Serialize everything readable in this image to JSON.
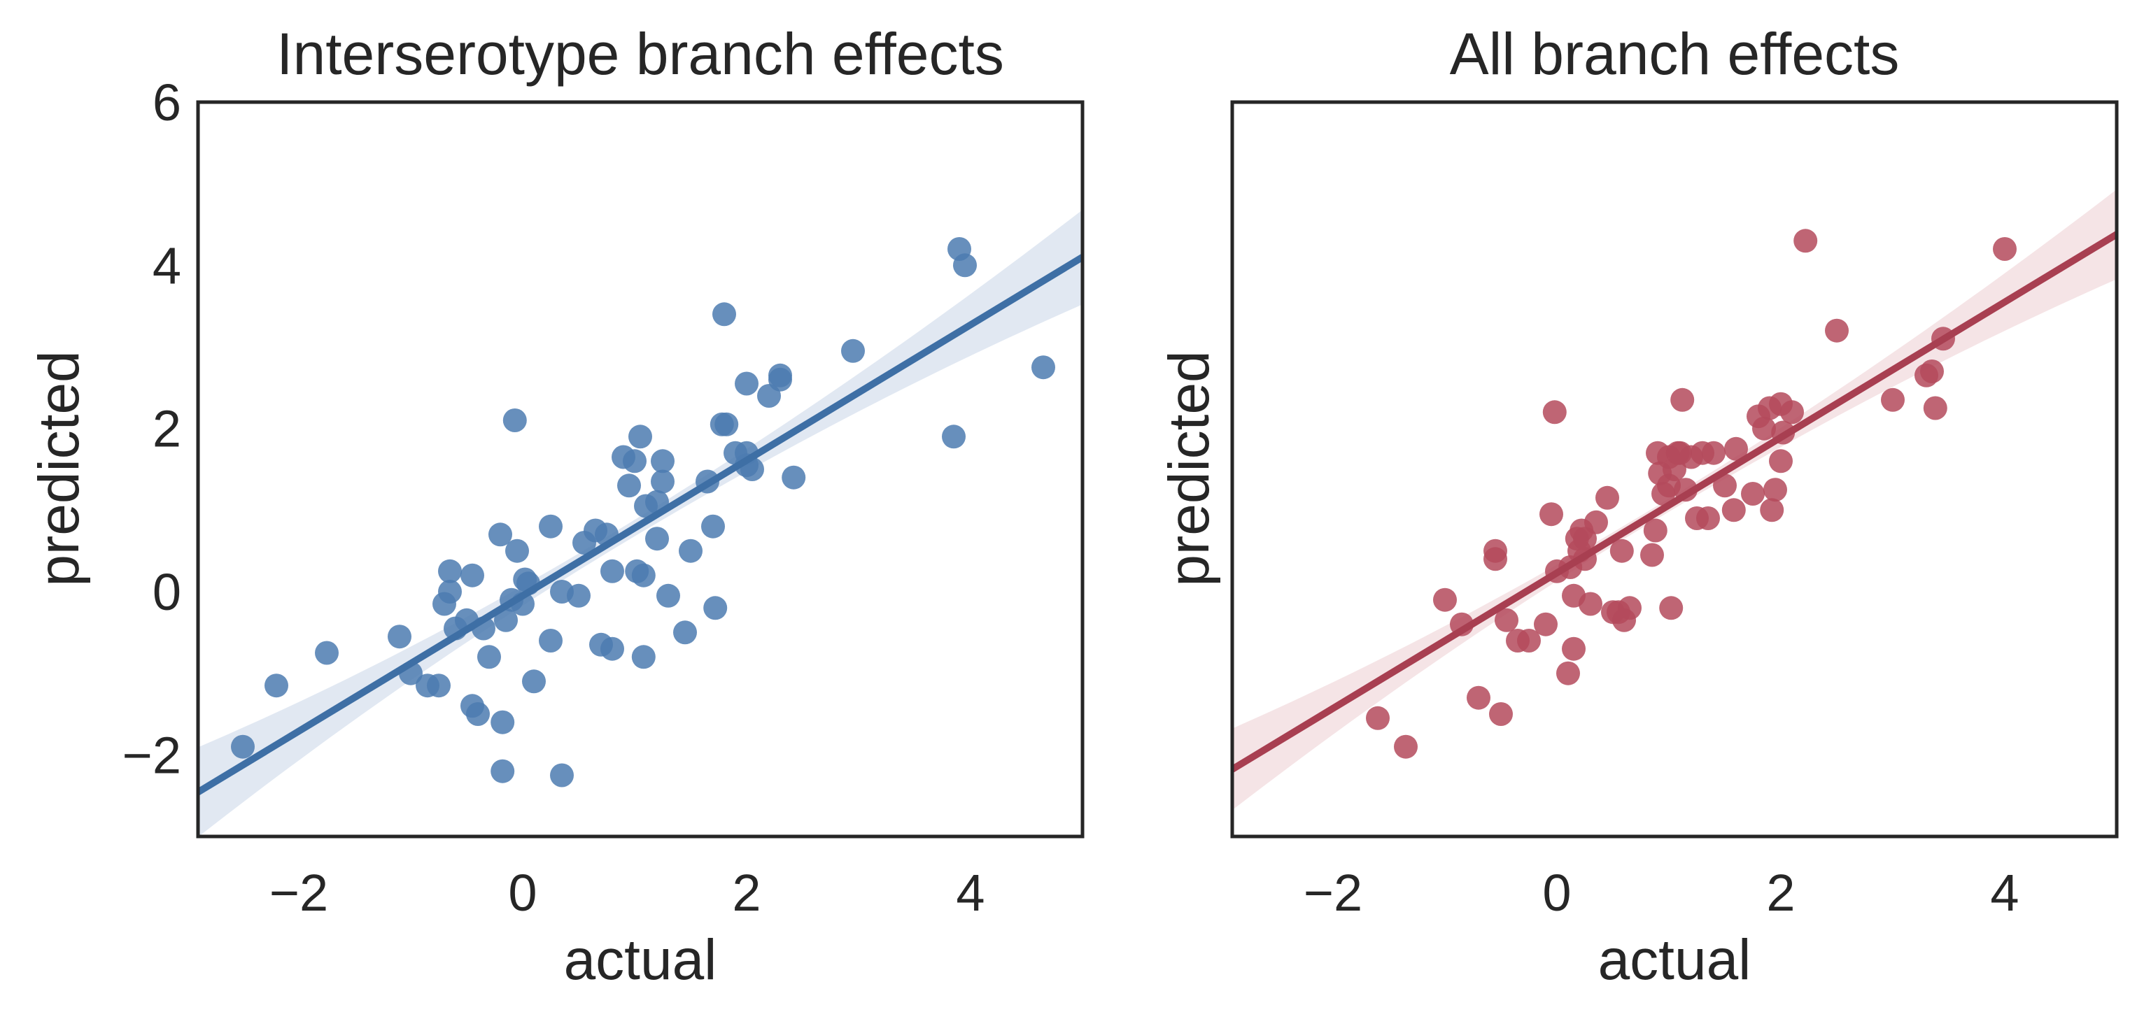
{
  "colors": {
    "text": "#262626",
    "spine": "#262626",
    "background": "#ffffff",
    "left_series": "#4C7BB0",
    "left_line": "#3E6FA5",
    "left_band": "#C9D6E8",
    "right_series": "#B44A5C",
    "right_line": "#A83F51",
    "right_band": "#ECCDD2"
  },
  "chart_data": [
    {
      "type": "scatter",
      "title": "Interserotype branch effects",
      "xlabel": "actual",
      "ylabel": "predicted",
      "xlim": [
        -2.9,
        5.0
      ],
      "ylim": [
        -3.0,
        6.0
      ],
      "xticks": [
        -2,
        0,
        2,
        4
      ],
      "xtick_labels": [
        "−2",
        "0",
        "2",
        "4"
      ],
      "yticks": [
        -2,
        0,
        2,
        4,
        6
      ],
      "ytick_labels": [
        "−2",
        "0",
        "2",
        "4",
        "6"
      ],
      "grid": false,
      "color": "#4C7BB0",
      "regression": {
        "slope": 0.83,
        "intercept": -0.05
      },
      "ci_band": {
        "left_half_width": 0.55,
        "right_half_width": 0.58,
        "min_half_width": 0.1,
        "center_x": 0.8
      },
      "points": [
        {
          "x": -2.5,
          "y": -1.9
        },
        {
          "x": -2.2,
          "y": -1.15
        },
        {
          "x": -1.75,
          "y": -0.75
        },
        {
          "x": -1.1,
          "y": -0.55
        },
        {
          "x": -1.0,
          "y": -1.0
        },
        {
          "x": -0.85,
          "y": -1.15
        },
        {
          "x": -0.75,
          "y": -1.15
        },
        {
          "x": -0.7,
          "y": -0.15
        },
        {
          "x": -0.65,
          "y": 0.25
        },
        {
          "x": -0.65,
          "y": 0.0
        },
        {
          "x": -0.6,
          "y": -0.45
        },
        {
          "x": -0.5,
          "y": -0.35
        },
        {
          "x": -0.45,
          "y": 0.2
        },
        {
          "x": -0.45,
          "y": -1.4
        },
        {
          "x": -0.4,
          "y": -1.5
        },
        {
          "x": -0.35,
          "y": -0.45
        },
        {
          "x": -0.3,
          "y": -0.8
        },
        {
          "x": -0.2,
          "y": 0.7
        },
        {
          "x": -0.18,
          "y": -1.6
        },
        {
          "x": -0.18,
          "y": -2.2
        },
        {
          "x": -0.15,
          "y": -0.35
        },
        {
          "x": -0.1,
          "y": -0.1
        },
        {
          "x": -0.07,
          "y": 2.1
        },
        {
          "x": -0.05,
          "y": 0.5
        },
        {
          "x": 0.0,
          "y": -0.15
        },
        {
          "x": 0.02,
          "y": 0.15
        },
        {
          "x": 0.05,
          "y": 0.1
        },
        {
          "x": 0.1,
          "y": -1.1
        },
        {
          "x": 0.25,
          "y": 0.8
        },
        {
          "x": 0.25,
          "y": -0.6
        },
        {
          "x": 0.35,
          "y": 0.0
        },
        {
          "x": 0.35,
          "y": -2.25
        },
        {
          "x": 0.5,
          "y": -0.05
        },
        {
          "x": 0.55,
          "y": 0.6
        },
        {
          "x": 0.65,
          "y": 0.75
        },
        {
          "x": 0.7,
          "y": -0.65
        },
        {
          "x": 0.75,
          "y": 0.7
        },
        {
          "x": 0.8,
          "y": -0.7
        },
        {
          "x": 0.8,
          "y": 0.25
        },
        {
          "x": 0.9,
          "y": 1.65
        },
        {
          "x": 0.95,
          "y": 1.3
        },
        {
          "x": 1.0,
          "y": 1.6
        },
        {
          "x": 1.02,
          "y": 0.25
        },
        {
          "x": 1.05,
          "y": 1.9
        },
        {
          "x": 1.08,
          "y": 0.2
        },
        {
          "x": 1.08,
          "y": -0.8
        },
        {
          "x": 1.1,
          "y": 1.05
        },
        {
          "x": 1.2,
          "y": 1.1
        },
        {
          "x": 1.2,
          "y": 0.65
        },
        {
          "x": 1.25,
          "y": 1.35
        },
        {
          "x": 1.25,
          "y": 1.6
        },
        {
          "x": 1.3,
          "y": -0.05
        },
        {
          "x": 1.45,
          "y": -0.5
        },
        {
          "x": 1.5,
          "y": 0.5
        },
        {
          "x": 1.65,
          "y": 1.35
        },
        {
          "x": 1.7,
          "y": 0.8
        },
        {
          "x": 1.72,
          "y": -0.2
        },
        {
          "x": 1.78,
          "y": 2.05
        },
        {
          "x": 1.8,
          "y": 3.4
        },
        {
          "x": 1.82,
          "y": 2.05
        },
        {
          "x": 1.9,
          "y": 1.7
        },
        {
          "x": 2.0,
          "y": 1.7
        },
        {
          "x": 2.0,
          "y": 1.55
        },
        {
          "x": 2.0,
          "y": 2.55
        },
        {
          "x": 2.05,
          "y": 1.5
        },
        {
          "x": 2.2,
          "y": 2.4
        },
        {
          "x": 2.3,
          "y": 2.6
        },
        {
          "x": 2.3,
          "y": 2.65
        },
        {
          "x": 2.42,
          "y": 1.4
        },
        {
          "x": 2.95,
          "y": 2.95
        },
        {
          "x": 3.85,
          "y": 1.9
        },
        {
          "x": 3.9,
          "y": 4.2
        },
        {
          "x": 3.95,
          "y": 4.0
        },
        {
          "x": 4.65,
          "y": 2.75
        }
      ]
    },
    {
      "type": "scatter",
      "title": "All branch effects",
      "xlabel": "actual",
      "ylabel": "predicted",
      "xlim": [
        -2.9,
        5.0
      ],
      "ylim": [
        -3.0,
        6.0
      ],
      "xticks": [
        -2,
        0,
        2,
        4
      ],
      "xtick_labels": [
        "−2",
        "0",
        "2",
        "4"
      ],
      "yticks": [
        -2,
        0,
        2,
        4,
        6
      ],
      "ytick_labels": [],
      "grid": false,
      "color": "#B44A5C",
      "regression": {
        "slope": 0.83,
        "intercept": 0.23
      },
      "ci_band": {
        "left_half_width": 0.5,
        "right_half_width": 0.55,
        "min_half_width": 0.08,
        "center_x": 0.8
      },
      "points": [
        {
          "x": -1.6,
          "y": -1.55
        },
        {
          "x": -1.35,
          "y": -1.9
        },
        {
          "x": -1.0,
          "y": -0.1
        },
        {
          "x": -0.85,
          "y": -0.4
        },
        {
          "x": -0.7,
          "y": -1.3
        },
        {
          "x": -0.55,
          "y": 0.4
        },
        {
          "x": -0.55,
          "y": 0.5
        },
        {
          "x": -0.5,
          "y": -1.5
        },
        {
          "x": -0.45,
          "y": -0.35
        },
        {
          "x": -0.35,
          "y": -0.6
        },
        {
          "x": -0.25,
          "y": -0.6
        },
        {
          "x": -0.1,
          "y": -0.4
        },
        {
          "x": -0.05,
          "y": 0.95
        },
        {
          "x": -0.02,
          "y": 2.2
        },
        {
          "x": 0.0,
          "y": 0.25
        },
        {
          "x": 0.1,
          "y": -1.0
        },
        {
          "x": 0.12,
          "y": 0.3
        },
        {
          "x": 0.15,
          "y": -0.05
        },
        {
          "x": 0.15,
          "y": -0.7
        },
        {
          "x": 0.18,
          "y": 0.65
        },
        {
          "x": 0.2,
          "y": 0.5
        },
        {
          "x": 0.22,
          "y": 0.75
        },
        {
          "x": 0.25,
          "y": 0.65
        },
        {
          "x": 0.25,
          "y": 0.4
        },
        {
          "x": 0.3,
          "y": -0.15
        },
        {
          "x": 0.35,
          "y": 0.85
        },
        {
          "x": 0.45,
          "y": 1.15
        },
        {
          "x": 0.5,
          "y": -0.25
        },
        {
          "x": 0.55,
          "y": -0.25
        },
        {
          "x": 0.58,
          "y": 0.5
        },
        {
          "x": 0.6,
          "y": -0.35
        },
        {
          "x": 0.65,
          "y": -0.2
        },
        {
          "x": 0.85,
          "y": 0.45
        },
        {
          "x": 0.88,
          "y": 0.75
        },
        {
          "x": 0.9,
          "y": 1.7
        },
        {
          "x": 0.92,
          "y": 1.45
        },
        {
          "x": 0.95,
          "y": 1.2
        },
        {
          "x": 1.0,
          "y": 1.3
        },
        {
          "x": 1.0,
          "y": 1.65
        },
        {
          "x": 1.02,
          "y": -0.2
        },
        {
          "x": 1.05,
          "y": 1.5
        },
        {
          "x": 1.08,
          "y": 1.7
        },
        {
          "x": 1.1,
          "y": 1.7
        },
        {
          "x": 1.12,
          "y": 2.35
        },
        {
          "x": 1.15,
          "y": 1.25
        },
        {
          "x": 1.2,
          "y": 1.65
        },
        {
          "x": 1.25,
          "y": 0.9
        },
        {
          "x": 1.3,
          "y": 1.7
        },
        {
          "x": 1.35,
          "y": 0.9
        },
        {
          "x": 1.4,
          "y": 1.7
        },
        {
          "x": 1.5,
          "y": 1.3
        },
        {
          "x": 1.58,
          "y": 1.0
        },
        {
          "x": 1.6,
          "y": 1.75
        },
        {
          "x": 1.75,
          "y": 1.2
        },
        {
          "x": 1.8,
          "y": 2.15
        },
        {
          "x": 1.85,
          "y": 2.0
        },
        {
          "x": 1.9,
          "y": 2.25
        },
        {
          "x": 1.92,
          "y": 1.0
        },
        {
          "x": 1.95,
          "y": 1.25
        },
        {
          "x": 2.0,
          "y": 1.6
        },
        {
          "x": 2.0,
          "y": 2.3
        },
        {
          "x": 2.02,
          "y": 1.95
        },
        {
          "x": 2.1,
          "y": 2.2
        },
        {
          "x": 2.22,
          "y": 4.3
        },
        {
          "x": 2.5,
          "y": 3.2
        },
        {
          "x": 3.0,
          "y": 2.35
        },
        {
          "x": 3.3,
          "y": 2.65
        },
        {
          "x": 3.35,
          "y": 2.7
        },
        {
          "x": 3.38,
          "y": 2.25
        },
        {
          "x": 3.45,
          "y": 3.1
        },
        {
          "x": 4.0,
          "y": 4.2
        }
      ]
    }
  ]
}
